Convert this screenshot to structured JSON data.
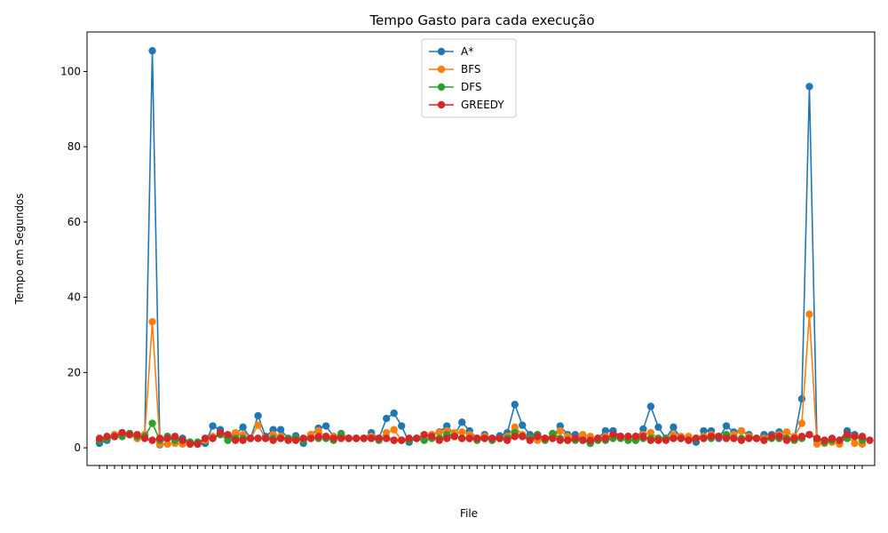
{
  "chart_data": {
    "type": "line",
    "title": "Tempo Gasto para cada execução",
    "xlabel": "File",
    "ylabel": "Tempo em Segundos",
    "ylim": [
      -4.7,
      110.5
    ],
    "yticks": [
      0,
      20,
      40,
      60,
      80,
      100
    ],
    "grid": false,
    "legend_position": "top-center",
    "x_tick_labels_note": "",
    "series": [
      {
        "name": "A*",
        "color": "#1f77b4",
        "values": [
          1.2,
          2.0,
          3.5,
          4.0,
          3.5,
          2.5,
          3.5,
          105.5,
          0.8,
          3.0,
          1.5,
          2.5,
          1.5,
          1.0,
          1.2,
          5.8,
          4.8,
          3.0,
          3.5,
          5.5,
          2.5,
          8.5,
          3.0,
          4.8,
          4.8,
          2.5,
          3.2,
          1.2,
          3.5,
          5.2,
          5.8,
          3.0,
          3.5,
          2.5,
          2.5,
          2.5,
          4.0,
          2.5,
          7.8,
          9.2,
          5.8,
          1.5,
          2.5,
          3.0,
          3.5,
          4.2,
          5.8,
          3.5,
          6.8,
          4.5,
          2.5,
          3.5,
          2.5,
          3.2,
          4.0,
          11.5,
          6.0,
          3.5,
          3.5,
          2.5,
          2.5,
          5.8,
          3.5,
          3.5,
          2.5,
          1.2,
          2.5,
          4.5,
          4.5,
          3.0,
          3.0,
          2.5,
          5.0,
          11.0,
          5.5,
          2.5,
          5.5,
          2.5,
          2.5,
          1.5,
          4.5,
          4.5,
          2.5,
          5.8,
          4.2,
          4.5,
          3.5,
          2.5,
          3.5,
          3.5,
          4.2,
          2.5,
          2.5,
          13.0,
          96.0,
          2.0,
          2.0,
          2.0,
          2.0,
          4.5,
          3.5,
          2.0
        ]
      },
      {
        "name": "BFS",
        "color": "#ff7f0e",
        "values": [
          2.0,
          2.5,
          3.5,
          4.0,
          3.5,
          2.5,
          3.5,
          33.5,
          1.0,
          1.0,
          1.2,
          1.0,
          1.0,
          1.0,
          2.0,
          3.0,
          3.5,
          3.0,
          4.0,
          3.5,
          2.5,
          6.0,
          2.5,
          3.5,
          3.0,
          2.5,
          2.5,
          2.5,
          3.5,
          4.5,
          3.0,
          3.0,
          3.0,
          2.5,
          2.5,
          2.5,
          3.0,
          2.5,
          4.0,
          4.8,
          2.0,
          2.5,
          2.5,
          2.5,
          3.5,
          4.0,
          4.5,
          4.0,
          4.2,
          3.5,
          2.5,
          3.0,
          2.5,
          2.5,
          3.0,
          5.5,
          3.5,
          2.5,
          2.0,
          2.5,
          2.5,
          4.5,
          3.0,
          2.5,
          3.5,
          3.0,
          2.5,
          3.0,
          3.0,
          3.0,
          3.0,
          3.0,
          3.5,
          4.0,
          2.5,
          2.5,
          3.5,
          3.0,
          3.0,
          2.5,
          3.0,
          3.5,
          3.0,
          3.5,
          3.5,
          4.5,
          3.0,
          2.5,
          2.5,
          3.0,
          3.5,
          4.2,
          3.0,
          6.5,
          35.5,
          1.0,
          1.2,
          1.5,
          1.0,
          3.0,
          1.2,
          1.0
        ]
      },
      {
        "name": "DFS",
        "color": "#2ca02c",
        "values": [
          2.0,
          2.5,
          3.0,
          3.0,
          3.8,
          3.0,
          3.0,
          6.5,
          2.0,
          3.0,
          2.0,
          2.0,
          1.5,
          1.5,
          2.5,
          2.5,
          3.5,
          2.0,
          2.5,
          2.5,
          2.5,
          2.5,
          2.5,
          2.5,
          2.5,
          2.5,
          2.5,
          2.0,
          2.5,
          2.5,
          2.5,
          2.0,
          3.8,
          2.5,
          2.5,
          2.5,
          2.5,
          2.0,
          2.5,
          2.0,
          2.0,
          2.0,
          2.5,
          2.0,
          2.5,
          2.5,
          3.5,
          3.0,
          2.5,
          2.5,
          2.0,
          2.5,
          2.0,
          2.5,
          2.5,
          4.0,
          3.0,
          2.5,
          3.5,
          2.0,
          3.8,
          2.5,
          2.0,
          2.0,
          2.0,
          1.2,
          2.0,
          2.0,
          2.5,
          2.5,
          2.0,
          2.0,
          2.5,
          2.5,
          2.5,
          2.5,
          2.5,
          2.5,
          2.0,
          2.5,
          2.5,
          2.5,
          3.0,
          3.5,
          2.5,
          2.5,
          2.5,
          2.5,
          2.0,
          2.5,
          2.5,
          2.5,
          2.0,
          2.5,
          3.5,
          2.5,
          1.5,
          2.0,
          2.0,
          2.5,
          3.0,
          2.0
        ]
      },
      {
        "name": "GREEDY",
        "color": "#d62728",
        "values": [
          2.5,
          3.0,
          3.0,
          4.0,
          3.5,
          3.5,
          2.5,
          2.0,
          2.5,
          2.5,
          3.0,
          2.0,
          1.0,
          1.0,
          2.5,
          2.5,
          4.0,
          3.5,
          2.0,
          2.0,
          2.5,
          2.5,
          2.5,
          2.0,
          2.5,
          2.0,
          2.0,
          2.5,
          2.5,
          3.0,
          3.0,
          2.5,
          2.5,
          2.5,
          2.5,
          2.5,
          2.5,
          2.5,
          2.5,
          2.0,
          2.0,
          2.5,
          2.5,
          3.5,
          3.0,
          2.0,
          2.5,
          3.0,
          2.5,
          2.5,
          2.5,
          2.5,
          2.5,
          2.5,
          2.0,
          3.0,
          3.0,
          2.0,
          3.0,
          2.5,
          2.5,
          2.0,
          2.0,
          2.5,
          2.0,
          2.0,
          2.5,
          2.5,
          3.5,
          3.0,
          3.0,
          3.0,
          3.0,
          2.0,
          2.0,
          2.0,
          2.5,
          2.5,
          2.0,
          2.5,
          2.5,
          3.0,
          3.0,
          2.5,
          2.5,
          2.0,
          2.5,
          2.5,
          2.0,
          3.0,
          3.0,
          2.0,
          2.5,
          3.0,
          3.5,
          2.5,
          2.0,
          2.5,
          2.0,
          3.5,
          3.0,
          3.0,
          2.0
        ]
      }
    ]
  }
}
